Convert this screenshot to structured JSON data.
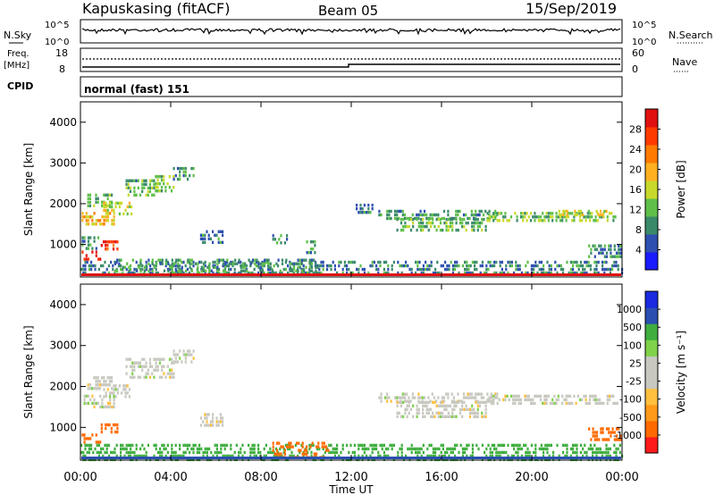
{
  "header": {
    "station": "Kapuskasing (fitACF)",
    "beam": "Beam 05",
    "date": "15/Sep/2019"
  },
  "nsky_panel": {
    "label": "N.Sky",
    "right_label": "N.Search",
    "left_ticks": [
      "10^5",
      "10^0"
    ],
    "right_ticks": [
      "10^5",
      "10^0"
    ]
  },
  "freq_panel": {
    "label_line1": "Freq.",
    "label_line2": "[MHz]",
    "right_label": "Nave",
    "left_ticks": [
      "18",
      "8"
    ],
    "right_ticks": [
      "60",
      "0"
    ]
  },
  "cpid_panel": {
    "label": "CPID",
    "text": "normal (fast) 151"
  },
  "colors": {
    "power_scale": [
      "#1a1aff",
      "#2e4fb0",
      "#3a8a6a",
      "#5fbf4a",
      "#c8d92b",
      "#ffb020",
      "#ff7a00",
      "#ff3a00",
      "#e01010"
    ],
    "velocity_scale": [
      "#ff1a1a",
      "#ff6a00",
      "#ff9a1a",
      "#ffc040",
      "#c8c8c0",
      "#c8c8c0",
      "#7fd24a",
      "#3fae3f",
      "#2a4fb0",
      "#1a2ae0"
    ]
  },
  "chart_data": [
    {
      "type": "heatmap",
      "name": "power",
      "ylabel": "Slant Range [km]",
      "ylim": [
        200,
        4500
      ],
      "yticks": [
        "1000",
        "2000",
        "3000",
        "4000"
      ],
      "colorbar_label": "Power [dB]",
      "colorbar_ticks": [
        "4",
        "8",
        "12",
        "16",
        "20",
        "24",
        "28"
      ],
      "colorbar_range": [
        0,
        32
      ],
      "regions": [
        {
          "t0": 0.05,
          "t1": 1.5,
          "r0": 1500,
          "r1": 1800,
          "value": 19
        },
        {
          "t0": 0.05,
          "t1": 0.9,
          "r0": 620,
          "r1": 850,
          "value": 29
        },
        {
          "t0": 0.9,
          "t1": 1.6,
          "r0": 850,
          "r1": 1100,
          "value": 28
        },
        {
          "t0": 0.05,
          "t1": 0.8,
          "r0": 900,
          "r1": 1200,
          "value": 10
        },
        {
          "t0": 0.3,
          "t1": 1.4,
          "r0": 1950,
          "r1": 2250,
          "value": 12
        },
        {
          "t0": 1.0,
          "t1": 2.3,
          "r0": 1750,
          "r1": 2050,
          "value": 15
        },
        {
          "t0": 2.0,
          "t1": 3.3,
          "r0": 2200,
          "r1": 2600,
          "value": 11
        },
        {
          "t0": 3.3,
          "t1": 4.1,
          "r0": 2300,
          "r1": 2700,
          "value": 13
        },
        {
          "t0": 4.1,
          "t1": 5.0,
          "r0": 2600,
          "r1": 2900,
          "value": 9
        },
        {
          "t0": 5.3,
          "t1": 6.3,
          "r0": 1050,
          "r1": 1350,
          "value": 8
        },
        {
          "t0": 8.5,
          "t1": 9.2,
          "r0": 1050,
          "r1": 1250,
          "value": 9
        },
        {
          "t0": 10.0,
          "t1": 10.4,
          "r0": 800,
          "r1": 1100,
          "value": 10
        },
        {
          "t0": 12.2,
          "t1": 13.0,
          "r0": 1800,
          "r1": 2000,
          "value": 8
        },
        {
          "t0": 13.2,
          "t1": 18.5,
          "r0": 1650,
          "r1": 1850,
          "value": 10
        },
        {
          "t0": 14.0,
          "t1": 18.0,
          "r0": 1300,
          "r1": 1650,
          "value": 12
        },
        {
          "t0": 18.0,
          "t1": 23.8,
          "r0": 1550,
          "r1": 1800,
          "value": 13
        },
        {
          "t0": 21.0,
          "t1": 23.5,
          "r0": 1700,
          "r1": 1850,
          "value": 16
        },
        {
          "t0": 22.5,
          "t1": 23.9,
          "r0": 700,
          "r1": 1000,
          "value": 9
        },
        {
          "t0": 0.0,
          "t1": 24.0,
          "r0": 250,
          "r1": 600,
          "value": 8
        },
        {
          "t0": 1.5,
          "t1": 10.5,
          "r0": 250,
          "r1": 650,
          "value": 10
        }
      ]
    },
    {
      "type": "heatmap",
      "name": "velocity",
      "ylabel": "Slant Range [km]",
      "ylim": [
        200,
        4500
      ],
      "yticks": [
        "1000",
        "2000",
        "3000",
        "4000"
      ],
      "colorbar_label": "Velocity [m s⁻¹]",
      "colorbar_ticks": [
        "1000",
        "500",
        "100",
        "25",
        "-25",
        "-100",
        "-500",
        "-1000"
      ],
      "regions": [
        {
          "t0": 0.05,
          "t1": 1.5,
          "r0": 1500,
          "r1": 1800,
          "value": 0
        },
        {
          "t0": 0.05,
          "t1": 0.9,
          "r0": 620,
          "r1": 850,
          "value": -150
        },
        {
          "t0": 0.9,
          "t1": 1.6,
          "r0": 850,
          "r1": 1100,
          "value": -150
        },
        {
          "t0": 0.3,
          "t1": 1.4,
          "r0": 1950,
          "r1": 2250,
          "value": 0
        },
        {
          "t0": 1.0,
          "t1": 2.3,
          "r0": 1750,
          "r1": 2050,
          "value": 0
        },
        {
          "t0": 2.0,
          "t1": 4.1,
          "r0": 2200,
          "r1": 2700,
          "value": 0
        },
        {
          "t0": 4.1,
          "t1": 5.0,
          "r0": 2600,
          "r1": 2900,
          "value": 0
        },
        {
          "t0": 5.3,
          "t1": 6.3,
          "r0": 1050,
          "r1": 1350,
          "value": 0
        },
        {
          "t0": 13.2,
          "t1": 18.5,
          "r0": 1650,
          "r1": 1850,
          "value": 0
        },
        {
          "t0": 14.0,
          "t1": 18.0,
          "r0": 1300,
          "r1": 1650,
          "value": 0
        },
        {
          "t0": 18.0,
          "t1": 23.8,
          "r0": 1550,
          "r1": 1800,
          "value": 0
        },
        {
          "t0": 22.5,
          "t1": 23.9,
          "r0": 700,
          "r1": 1000,
          "value": -150
        },
        {
          "t0": 0.0,
          "t1": 24.0,
          "r0": 250,
          "r1": 600,
          "value": 150
        },
        {
          "t0": 8.5,
          "t1": 11.0,
          "r0": 300,
          "r1": 650,
          "value": -150
        }
      ]
    }
  ],
  "xaxis": {
    "label": "Time UT",
    "ticks": [
      "00:00",
      "04:00",
      "08:00",
      "12:00",
      "16:00",
      "20:00",
      "00:00"
    ],
    "range_hours": [
      0,
      24
    ]
  }
}
